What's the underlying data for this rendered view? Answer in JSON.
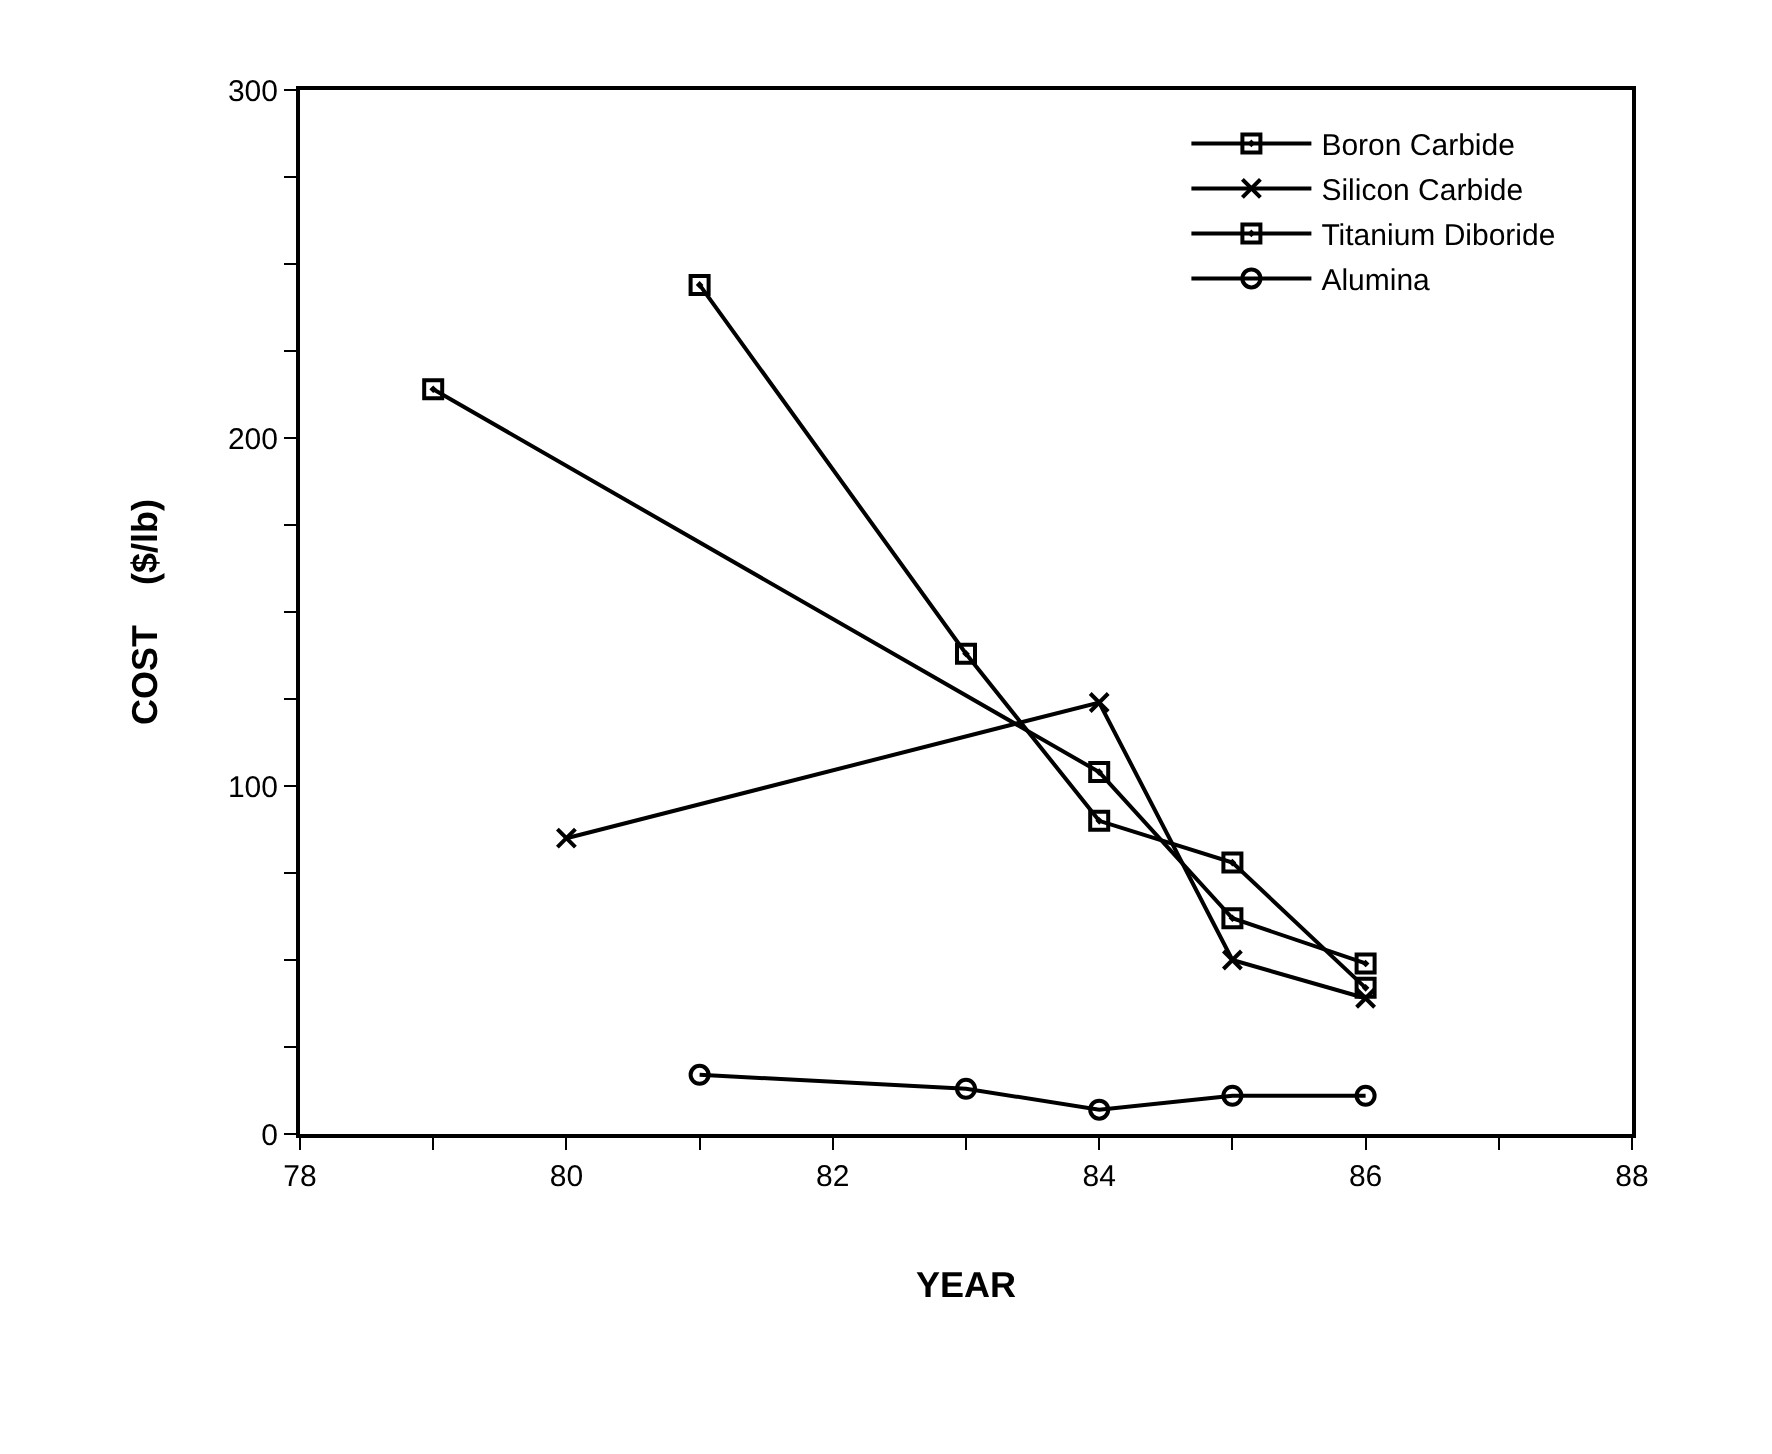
{
  "chart_data": {
    "type": "line",
    "xlabel": "YEAR",
    "ylabel": "COST    ($/lb)",
    "xlim": [
      78,
      88
    ],
    "ylim": [
      0,
      300
    ],
    "xticks": [
      78,
      {
        "value": 79,
        "label": null
      },
      80,
      {
        "value": 81,
        "label": null
      },
      82,
      {
        "value": 83,
        "label": null
      },
      84,
      {
        "value": 85,
        "label": null
      },
      86,
      {
        "value": 87,
        "label": null
      },
      88
    ],
    "yticks": [
      0,
      {
        "value": 25,
        "label": null
      },
      {
        "value": 50,
        "label": null
      },
      {
        "value": 75,
        "label": null
      },
      100,
      {
        "value": 125,
        "label": null
      },
      {
        "value": 150,
        "label": null
      },
      {
        "value": 175,
        "label": null
      },
      200,
      {
        "value": 225,
        "label": null
      },
      {
        "value": 250,
        "label": null
      },
      {
        "value": 275,
        "label": null
      },
      300
    ],
    "legend": "top right",
    "line_style": "solid",
    "series": [
      {
        "name": "Boron Carbide",
        "color": "#000000",
        "marker": "square",
        "x": [
          79,
          84,
          85,
          86
        ],
        "values": [
          214,
          104,
          62,
          49
        ]
      },
      {
        "name": "Silicon Carbide",
        "color": "#000000",
        "marker": "cross",
        "x": [
          80,
          84,
          85,
          86
        ],
        "values": [
          85,
          124,
          50,
          39
        ]
      },
      {
        "name": "Titanium Diboride",
        "color": "#000000",
        "marker": "square",
        "x": [
          81,
          83,
          84,
          85,
          86
        ],
        "values": [
          244,
          138,
          90,
          78,
          42
        ]
      },
      {
        "name": "Alumina",
        "color": "#000000",
        "marker": "circle",
        "x": [
          81,
          83,
          84,
          85,
          86
        ],
        "values": [
          17,
          13,
          7,
          11,
          11
        ]
      }
    ]
  }
}
